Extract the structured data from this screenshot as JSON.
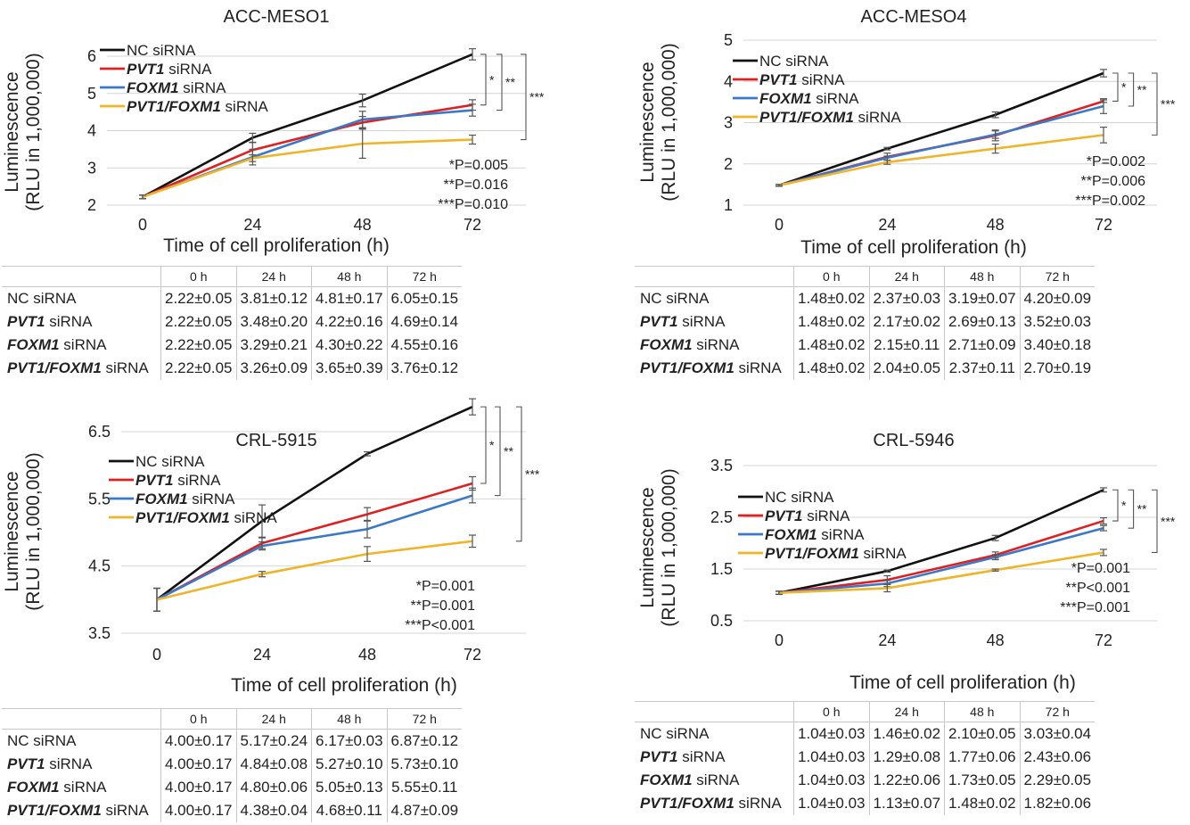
{
  "colors": {
    "nc": "#111111",
    "pvt1": "#e02020",
    "foxm1": "#3a78c8",
    "combo": "#f0b429",
    "grid": "#d4d4d4",
    "axis": "#333333"
  },
  "chart_data": [
    {
      "type": "line",
      "title": "ACC-MESO1",
      "xlabel": "Time of cell proliferation (h)",
      "ylabel": "Luminescence (RLU in 1,000,000)",
      "ylabel_lines": [
        "Luminescence",
        "(RLU in 1,000,000)"
      ],
      "x": [
        0,
        24,
        48,
        72
      ],
      "ylim": [
        2,
        6
      ],
      "yticks": [
        2,
        3,
        4,
        5,
        6
      ],
      "ytick_labels": [
        "2",
        "3",
        "4",
        "5",
        "6"
      ],
      "series": [
        {
          "name": "NC siRNA",
          "gene": "",
          "suffix": "NC siRNA",
          "color_key": "nc",
          "values": [
            2.22,
            3.81,
            4.81,
            6.05
          ],
          "errors": [
            0.05,
            0.12,
            0.17,
            0.15
          ]
        },
        {
          "name": "PVT1 siRNA",
          "gene": "PVT1",
          "suffix": " siRNA",
          "color_key": "pvt1",
          "values": [
            2.22,
            3.48,
            4.22,
            4.69
          ],
          "errors": [
            0.05,
            0.2,
            0.16,
            0.14
          ]
        },
        {
          "name": "FOXM1 siRNA",
          "gene": "FOXM1",
          "suffix": " siRNA",
          "color_key": "foxm1",
          "values": [
            2.22,
            3.29,
            4.3,
            4.55
          ],
          "errors": [
            0.05,
            0.21,
            0.22,
            0.16
          ]
        },
        {
          "name": "PVT1/FOXM1 siRNA",
          "gene": "PVT1/FOXM1",
          "suffix": " siRNA",
          "color_key": "combo",
          "values": [
            2.22,
            3.26,
            3.65,
            3.76
          ],
          "errors": [
            0.05,
            0.09,
            0.39,
            0.12
          ]
        }
      ],
      "brackets": [
        "*",
        "**",
        "***"
      ],
      "pvalues": [
        "*P=0.005",
        "**P=0.016",
        "***P=0.010"
      ],
      "table": {
        "headers": [
          "0 h",
          "24 h",
          "48 h",
          "72 h"
        ],
        "rows": [
          {
            "gene": "",
            "suffix": "NC siRNA",
            "cells": [
              "2.22±0.05",
              "3.81±0.12",
              "4.81±0.17",
              "6.05±0.15"
            ]
          },
          {
            "gene": "PVT1",
            "suffix": " siRNA",
            "cells": [
              "2.22±0.05",
              "3.48±0.20",
              "4.22±0.16",
              "4.69±0.14"
            ]
          },
          {
            "gene": "FOXM1",
            "suffix": " siRNA",
            "cells": [
              "2.22±0.05",
              "3.29±0.21",
              "4.30±0.22",
              "4.55±0.16"
            ]
          },
          {
            "gene": "PVT1/FOXM1",
            "suffix": " siRNA",
            "cells": [
              "2.22±0.05",
              "3.26±0.09",
              "3.65±0.39",
              "3.76±0.12"
            ]
          }
        ]
      }
    },
    {
      "type": "line",
      "title": "ACC-MESO4",
      "xlabel": "Time of cell proliferation (h)",
      "ylabel": "Luminescence (RLU in 1,000,000)",
      "ylabel_lines": [
        "Luminescence",
        "(RLU in 1,000,000)"
      ],
      "x": [
        0,
        24,
        48,
        72
      ],
      "ylim": [
        1,
        5
      ],
      "yticks": [
        1,
        2,
        3,
        4,
        5
      ],
      "ytick_labels": [
        "1",
        "2",
        "3",
        "4",
        "5"
      ],
      "series": [
        {
          "name": "NC siRNA",
          "gene": "",
          "suffix": "NC siRNA",
          "color_key": "nc",
          "values": [
            1.48,
            2.37,
            3.19,
            4.2
          ],
          "errors": [
            0.02,
            0.03,
            0.07,
            0.09
          ]
        },
        {
          "name": "PVT1 siRNA",
          "gene": "PVT1",
          "suffix": " siRNA",
          "color_key": "pvt1",
          "values": [
            1.48,
            2.17,
            2.69,
            3.52
          ],
          "errors": [
            0.02,
            0.02,
            0.13,
            0.03
          ]
        },
        {
          "name": "FOXM1 siRNA",
          "gene": "FOXM1",
          "suffix": " siRNA",
          "color_key": "foxm1",
          "values": [
            1.48,
            2.15,
            2.71,
            3.4
          ],
          "errors": [
            0.02,
            0.11,
            0.09,
            0.18
          ]
        },
        {
          "name": "PVT1/FOXM1 siRNA",
          "gene": "PVT1/FOXM1",
          "suffix": " siRNA",
          "color_key": "combo",
          "values": [
            1.48,
            2.04,
            2.37,
            2.7
          ],
          "errors": [
            0.02,
            0.05,
            0.11,
            0.19
          ]
        }
      ],
      "brackets": [
        "*",
        "**",
        "***"
      ],
      "pvalues": [
        "*P=0.002",
        "**P=0.006",
        "***P=0.002"
      ],
      "table": {
        "headers": [
          "0 h",
          "24 h",
          "48 h",
          "72 h"
        ],
        "rows": [
          {
            "gene": "",
            "suffix": "NC siRNA",
            "cells": [
              "1.48±0.02",
              "2.37±0.03",
              "3.19±0.07",
              "4.20±0.09"
            ]
          },
          {
            "gene": "PVT1",
            "suffix": " siRNA",
            "cells": [
              "1.48±0.02",
              "2.17±0.02",
              "2.69±0.13",
              "3.52±0.03"
            ]
          },
          {
            "gene": "FOXM1",
            "suffix": " siRNA",
            "cells": [
              "1.48±0.02",
              "2.15±0.11",
              "2.71±0.09",
              "3.40±0.18"
            ]
          },
          {
            "gene": "PVT1/FOXM1",
            "suffix": " siRNA",
            "cells": [
              "1.48±0.02",
              "2.04±0.05",
              "2.37±0.11",
              "2.70±0.19"
            ]
          }
        ]
      }
    },
    {
      "type": "line",
      "title": "CRL-5915",
      "xlabel": "Time of cell proliferation (h)",
      "ylabel": "Luminescence (RLU in 1,000,000)",
      "ylabel_lines": [
        "Luminescence",
        "(RLU in 1,000,000)"
      ],
      "x": [
        0,
        24,
        48,
        72
      ],
      "ylim": [
        3.5,
        7
      ],
      "yticks": [
        3.5,
        4.5,
        5.5,
        6.5
      ],
      "ytick_labels": [
        "3.5",
        "4.5",
        "5.5",
        "6.5"
      ],
      "series": [
        {
          "name": "NC siRNA",
          "gene": "",
          "suffix": "NC siRNA",
          "color_key": "nc",
          "values": [
            4.0,
            5.17,
            6.17,
            6.87
          ],
          "errors": [
            0.17,
            0.24,
            0.03,
            0.12
          ]
        },
        {
          "name": "PVT1 siRNA",
          "gene": "PVT1",
          "suffix": " siRNA",
          "color_key": "pvt1",
          "values": [
            4.0,
            4.84,
            5.27,
            5.73
          ],
          "errors": [
            0.17,
            0.08,
            0.1,
            0.1
          ]
        },
        {
          "name": "FOXM1 siRNA",
          "gene": "FOXM1",
          "suffix": " siRNA",
          "color_key": "foxm1",
          "values": [
            4.0,
            4.8,
            5.05,
            5.55
          ],
          "errors": [
            0.17,
            0.06,
            0.13,
            0.11
          ]
        },
        {
          "name": "PVT1/FOXM1 siRNA",
          "gene": "PVT1/FOXM1",
          "suffix": " siRNA",
          "color_key": "combo",
          "values": [
            4.0,
            4.38,
            4.68,
            4.87
          ],
          "errors": [
            0.17,
            0.04,
            0.11,
            0.09
          ]
        }
      ],
      "brackets": [
        "*",
        "**",
        "***"
      ],
      "pvalues": [
        "*P=0.001",
        "**P=0.001",
        "***P<0.001"
      ],
      "table": {
        "headers": [
          "0 h",
          "24 h",
          "48 h",
          "72 h"
        ],
        "rows": [
          {
            "gene": "",
            "suffix": "NC siRNA",
            "cells": [
              "4.00±0.17",
              "5.17±0.24",
              "6.17±0.03",
              "6.87±0.12"
            ]
          },
          {
            "gene": "PVT1",
            "suffix": " siRNA",
            "cells": [
              "4.00±0.17",
              "4.84±0.08",
              "5.27±0.10",
              "5.73±0.10"
            ]
          },
          {
            "gene": "FOXM1",
            "suffix": " siRNA",
            "cells": [
              "4.00±0.17",
              "4.80±0.06",
              "5.05±0.13",
              "5.55±0.11"
            ]
          },
          {
            "gene": "PVT1/FOXM1",
            "suffix": " siRNA",
            "cells": [
              "4.00±0.17",
              "4.38±0.04",
              "4.68±0.11",
              "4.87±0.09"
            ]
          }
        ]
      }
    },
    {
      "type": "line",
      "title": "CRL-5946",
      "xlabel": "Time of cell proliferation (h)",
      "ylabel": "Luminescence (RLU in 1,000,000)",
      "ylabel_lines": [
        "Luminescence",
        "(RLU in 1,000,000)"
      ],
      "x": [
        0,
        24,
        48,
        72
      ],
      "ylim": [
        0.5,
        3.5
      ],
      "yticks": [
        0.5,
        1.5,
        2.5,
        3.5
      ],
      "ytick_labels": [
        "0.5",
        "1.5",
        "2.5",
        "3.5"
      ],
      "series": [
        {
          "name": "NC siRNA",
          "gene": "",
          "suffix": "NC siRNA",
          "color_key": "nc",
          "values": [
            1.04,
            1.46,
            2.1,
            3.03
          ],
          "errors": [
            0.03,
            0.02,
            0.05,
            0.04
          ]
        },
        {
          "name": "PVT1 siRNA",
          "gene": "PVT1",
          "suffix": " siRNA",
          "color_key": "pvt1",
          "values": [
            1.04,
            1.29,
            1.77,
            2.43
          ],
          "errors": [
            0.03,
            0.08,
            0.06,
            0.06
          ]
        },
        {
          "name": "FOXM1 siRNA",
          "gene": "FOXM1",
          "suffix": " siRNA",
          "color_key": "foxm1",
          "values": [
            1.04,
            1.22,
            1.73,
            2.29
          ],
          "errors": [
            0.03,
            0.06,
            0.05,
            0.05
          ]
        },
        {
          "name": "PVT1/FOXM1 siRNA",
          "gene": "PVT1/FOXM1",
          "suffix": " siRNA",
          "color_key": "combo",
          "values": [
            1.04,
            1.13,
            1.48,
            1.82
          ],
          "errors": [
            0.03,
            0.07,
            0.02,
            0.06
          ]
        }
      ],
      "brackets": [
        "*",
        "**",
        "***"
      ],
      "pvalues": [
        "*P=0.001",
        "**P<0.001",
        "***P=0.001"
      ],
      "table": {
        "headers": [
          "0 h",
          "24 h",
          "48 h",
          "72 h"
        ],
        "rows": [
          {
            "gene": "",
            "suffix": "NC siRNA",
            "cells": [
              "1.04±0.03",
              "1.46±0.02",
              "2.10±0.05",
              "3.03±0.04"
            ]
          },
          {
            "gene": "PVT1",
            "suffix": " siRNA",
            "cells": [
              "1.04±0.03",
              "1.29±0.08",
              "1.77±0.06",
              "2.43±0.06"
            ]
          },
          {
            "gene": "FOXM1",
            "suffix": " siRNA",
            "cells": [
              "1.04±0.03",
              "1.22±0.06",
              "1.73±0.05",
              "2.29±0.05"
            ]
          },
          {
            "gene": "PVT1/FOXM1",
            "suffix": " siRNA",
            "cells": [
              "1.04±0.03",
              "1.13±0.07",
              "1.48±0.02",
              "1.82±0.06"
            ]
          }
        ]
      }
    }
  ]
}
